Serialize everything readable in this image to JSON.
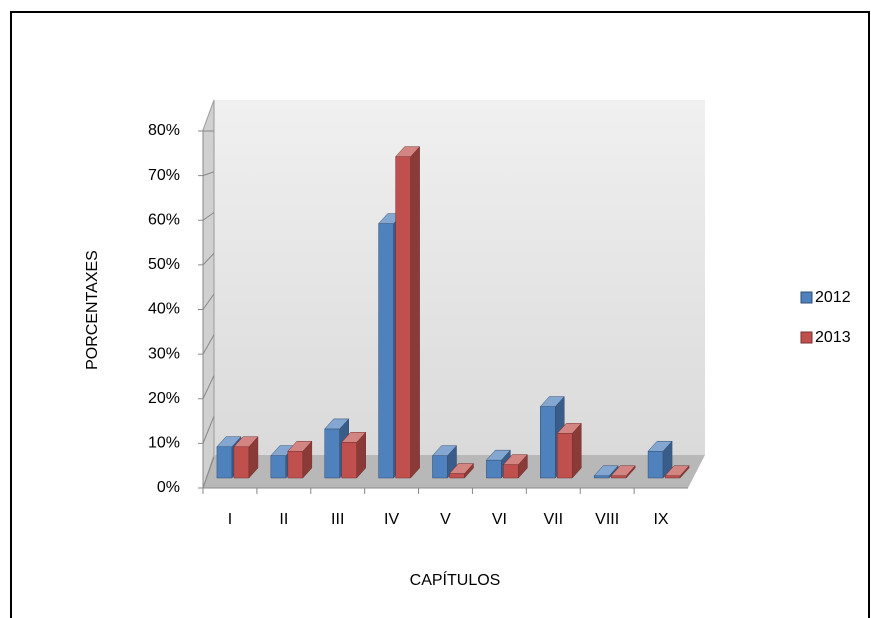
{
  "chart_data": {
    "type": "bar3d",
    "xlabel": "CAPÍTULOS",
    "ylabel": "PORCENTAXES",
    "categories": [
      "I",
      "II",
      "III",
      "IV",
      "V",
      "VI",
      "VII",
      "VIII",
      "IX"
    ],
    "series": [
      {
        "name": "2012",
        "color": "#4f81bd",
        "values": [
          7,
          5,
          11,
          57,
          5,
          4,
          16,
          0.5,
          6
        ]
      },
      {
        "name": "2013",
        "color": "#c0504d",
        "values": [
          7,
          6,
          8,
          72,
          1,
          3,
          10,
          0.5,
          0.5
        ]
      }
    ],
    "ylim": [
      0,
      80
    ],
    "yticks": [
      {
        "value": 0,
        "label": "0%"
      },
      {
        "value": 10,
        "label": "10%"
      },
      {
        "value": 20,
        "label": "20%"
      },
      {
        "value": 30,
        "label": "30%"
      },
      {
        "value": 40,
        "label": "40%"
      },
      {
        "value": 50,
        "label": "50%"
      },
      {
        "value": 60,
        "label": "60%"
      },
      {
        "value": 70,
        "label": "70%"
      },
      {
        "value": 80,
        "label": "80%"
      }
    ],
    "legend": "right"
  }
}
